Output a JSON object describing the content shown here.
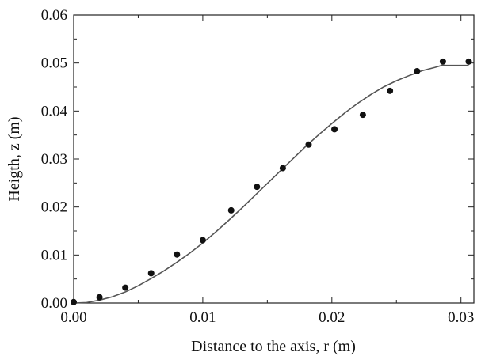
{
  "chart_data": {
    "type": "scatter",
    "xlabel": "Distance to the axis, r (m)",
    "ylabel": "Heigth, z (m)",
    "xlim": [
      0,
      0.031
    ],
    "ylim": [
      0,
      0.06
    ],
    "x_ticks": [
      "0.00",
      "0.01",
      "0.02",
      "0.03"
    ],
    "x_tick_values": [
      0,
      0.01,
      0.02,
      0.03
    ],
    "y_ticks": [
      "0.00",
      "0.01",
      "0.02",
      "0.03",
      "0.04",
      "0.05",
      "0.06"
    ],
    "y_tick_values": [
      0,
      0.01,
      0.02,
      0.03,
      0.04,
      0.05,
      0.06
    ],
    "grid": false,
    "series": [
      {
        "type": "scatter",
        "color": "#111111",
        "points": [
          [
            0.0,
            0.0002
          ],
          [
            0.002,
            0.0012
          ],
          [
            0.004,
            0.0032
          ],
          [
            0.006,
            0.0062
          ],
          [
            0.008,
            0.0101
          ],
          [
            0.01,
            0.0131
          ],
          [
            0.0122,
            0.0193
          ],
          [
            0.0142,
            0.0242
          ],
          [
            0.0162,
            0.0281
          ],
          [
            0.0182,
            0.033
          ],
          [
            0.0202,
            0.0362
          ],
          [
            0.0224,
            0.0392
          ],
          [
            0.0245,
            0.0442
          ],
          [
            0.0266,
            0.0483
          ],
          [
            0.0286,
            0.0503
          ],
          [
            0.0306,
            0.0503
          ]
        ]
      },
      {
        "type": "line",
        "color": "#555555",
        "points": [
          [
            0.0,
            0.0
          ],
          [
            0.001,
            0.0001
          ],
          [
            0.002,
            0.0006
          ],
          [
            0.003,
            0.0013
          ],
          [
            0.004,
            0.0023
          ],
          [
            0.005,
            0.0036
          ],
          [
            0.006,
            0.0051
          ],
          [
            0.007,
            0.0067
          ],
          [
            0.008,
            0.0085
          ],
          [
            0.009,
            0.0104
          ],
          [
            0.01,
            0.0125
          ],
          [
            0.011,
            0.0148
          ],
          [
            0.012,
            0.0172
          ],
          [
            0.013,
            0.0197
          ],
          [
            0.014,
            0.0223
          ],
          [
            0.015,
            0.0249
          ],
          [
            0.016,
            0.0275
          ],
          [
            0.017,
            0.0301
          ],
          [
            0.018,
            0.0327
          ],
          [
            0.019,
            0.0351
          ],
          [
            0.02,
            0.0374
          ],
          [
            0.021,
            0.0396
          ],
          [
            0.022,
            0.0416
          ],
          [
            0.023,
            0.0434
          ],
          [
            0.024,
            0.045
          ],
          [
            0.025,
            0.0463
          ],
          [
            0.026,
            0.0474
          ],
          [
            0.027,
            0.0484
          ],
          [
            0.028,
            0.0491
          ],
          [
            0.0285,
            0.0495
          ],
          [
            0.0306,
            0.0495
          ]
        ]
      }
    ]
  }
}
